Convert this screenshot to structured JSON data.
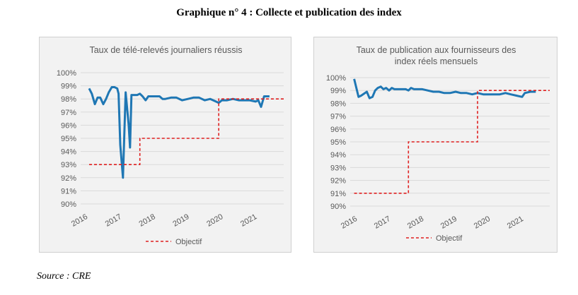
{
  "page_title": "Graphique n° 4 : Collecte et publication des index",
  "source": "Source : CRE",
  "colors": {
    "series": "#1f77b4",
    "objective": "#e02020",
    "panel_bg": "#f2f2f2",
    "grid": "#d9d9d9",
    "text": "#595959"
  },
  "chart_data": [
    {
      "type": "line",
      "title": "Taux de télé-relevés journaliers réussis",
      "xlabel": "",
      "ylabel": "",
      "yticks": [
        "100%",
        "99%",
        "98%",
        "97%",
        "96%",
        "95%",
        "94%",
        "93%",
        "92%",
        "91%",
        "90%"
      ],
      "xticks": [
        "2016",
        "2017",
        "2018",
        "2019",
        "2020",
        "2021"
      ],
      "ylim": [
        90,
        100
      ],
      "xlim": [
        2016,
        2022
      ],
      "grid": true,
      "legend_position": "bottom",
      "legend": [
        "Objectif"
      ],
      "series": [
        {
          "values": [
            [
              2016.25,
              98.8
            ],
            [
              2016.33,
              98.4
            ],
            [
              2016.42,
              97.6
            ],
            [
              2016.5,
              98.1
            ],
            [
              2016.58,
              98.1
            ],
            [
              2016.67,
              97.6
            ],
            [
              2016.75,
              98.0
            ],
            [
              2016.83,
              98.5
            ],
            [
              2016.92,
              98.9
            ],
            [
              2017.0,
              98.9
            ],
            [
              2017.08,
              98.8
            ],
            [
              2017.12,
              98.4
            ],
            [
              2017.17,
              94.5
            ],
            [
              2017.25,
              92.0
            ],
            [
              2017.33,
              98.5
            ],
            [
              2017.42,
              96.0
            ],
            [
              2017.46,
              94.3
            ],
            [
              2017.5,
              98.3
            ],
            [
              2017.58,
              98.3
            ],
            [
              2017.67,
              98.3
            ],
            [
              2017.75,
              98.4
            ],
            [
              2017.83,
              98.2
            ],
            [
              2017.92,
              97.9
            ],
            [
              2018.0,
              98.2
            ],
            [
              2018.17,
              98.2
            ],
            [
              2018.33,
              98.2
            ],
            [
              2018.42,
              98.0
            ],
            [
              2018.5,
              98.0
            ],
            [
              2018.67,
              98.1
            ],
            [
              2018.83,
              98.1
            ],
            [
              2019.0,
              97.9
            ],
            [
              2019.17,
              98.0
            ],
            [
              2019.33,
              98.1
            ],
            [
              2019.5,
              98.1
            ],
            [
              2019.67,
              97.9
            ],
            [
              2019.83,
              98.0
            ],
            [
              2020.0,
              97.8
            ],
            [
              2020.08,
              97.7
            ],
            [
              2020.17,
              97.9
            ],
            [
              2020.33,
              97.9
            ],
            [
              2020.5,
              98.0
            ],
            [
              2020.67,
              97.9
            ],
            [
              2020.83,
              97.9
            ],
            [
              2021.0,
              97.9
            ],
            [
              2021.17,
              97.8
            ],
            [
              2021.25,
              97.9
            ],
            [
              2021.33,
              97.4
            ],
            [
              2021.42,
              98.2
            ],
            [
              2021.5,
              98.2
            ],
            [
              2021.58,
              98.2
            ]
          ]
        },
        {
          "name": "Objectif",
          "style": "dashed",
          "values": [
            [
              2016.25,
              93
            ],
            [
              2017.75,
              93
            ],
            [
              2017.75,
              95
            ],
            [
              2020.08,
              95
            ],
            [
              2020.08,
              98
            ],
            [
              2022.0,
              98
            ]
          ]
        }
      ]
    },
    {
      "type": "line",
      "title": "Taux de publication aux fournisseurs des index réels mensuels",
      "title_lines": [
        "Taux de publication aux fournisseurs des",
        "index réels mensuels"
      ],
      "xlabel": "",
      "ylabel": "",
      "yticks": [
        "100%",
        "99%",
        "98%",
        "97%",
        "96%",
        "95%",
        "94%",
        "93%",
        "92%",
        "91%",
        "90%"
      ],
      "xticks": [
        "2016",
        "2017",
        "2018",
        "2019",
        "2020",
        "2021"
      ],
      "ylim": [
        90,
        100
      ],
      "xlim": [
        2016,
        2022
      ],
      "grid": true,
      "legend_position": "bottom",
      "legend": [
        "Objectif"
      ],
      "series": [
        {
          "values": [
            [
              2016.12,
              99.9
            ],
            [
              2016.25,
              98.5
            ],
            [
              2016.33,
              98.6
            ],
            [
              2016.5,
              98.9
            ],
            [
              2016.58,
              98.4
            ],
            [
              2016.67,
              98.5
            ],
            [
              2016.75,
              99.0
            ],
            [
              2016.83,
              99.2
            ],
            [
              2016.92,
              99.3
            ],
            [
              2017.0,
              99.1
            ],
            [
              2017.08,
              99.2
            ],
            [
              2017.17,
              99.0
            ],
            [
              2017.25,
              99.2
            ],
            [
              2017.33,
              99.1
            ],
            [
              2017.5,
              99.1
            ],
            [
              2017.67,
              99.1
            ],
            [
              2017.75,
              99.0
            ],
            [
              2017.83,
              99.2
            ],
            [
              2017.92,
              99.1
            ],
            [
              2018.0,
              99.1
            ],
            [
              2018.17,
              99.1
            ],
            [
              2018.33,
              99.0
            ],
            [
              2018.5,
              98.9
            ],
            [
              2018.67,
              98.9
            ],
            [
              2018.83,
              98.8
            ],
            [
              2019.0,
              98.8
            ],
            [
              2019.17,
              98.9
            ],
            [
              2019.33,
              98.8
            ],
            [
              2019.5,
              98.8
            ],
            [
              2019.67,
              98.7
            ],
            [
              2019.83,
              98.8
            ],
            [
              2020.0,
              98.7
            ],
            [
              2020.17,
              98.7
            ],
            [
              2020.33,
              98.7
            ],
            [
              2020.5,
              98.7
            ],
            [
              2020.67,
              98.8
            ],
            [
              2020.83,
              98.7
            ],
            [
              2021.0,
              98.6
            ],
            [
              2021.17,
              98.5
            ],
            [
              2021.25,
              98.8
            ],
            [
              2021.42,
              98.9
            ],
            [
              2021.58,
              98.9
            ]
          ]
        },
        {
          "name": "Objectif",
          "style": "dashed",
          "values": [
            [
              2016.12,
              91
            ],
            [
              2017.75,
              91
            ],
            [
              2017.75,
              95
            ],
            [
              2019.83,
              95
            ],
            [
              2019.83,
              99
            ],
            [
              2022.0,
              99
            ]
          ]
        }
      ]
    }
  ]
}
